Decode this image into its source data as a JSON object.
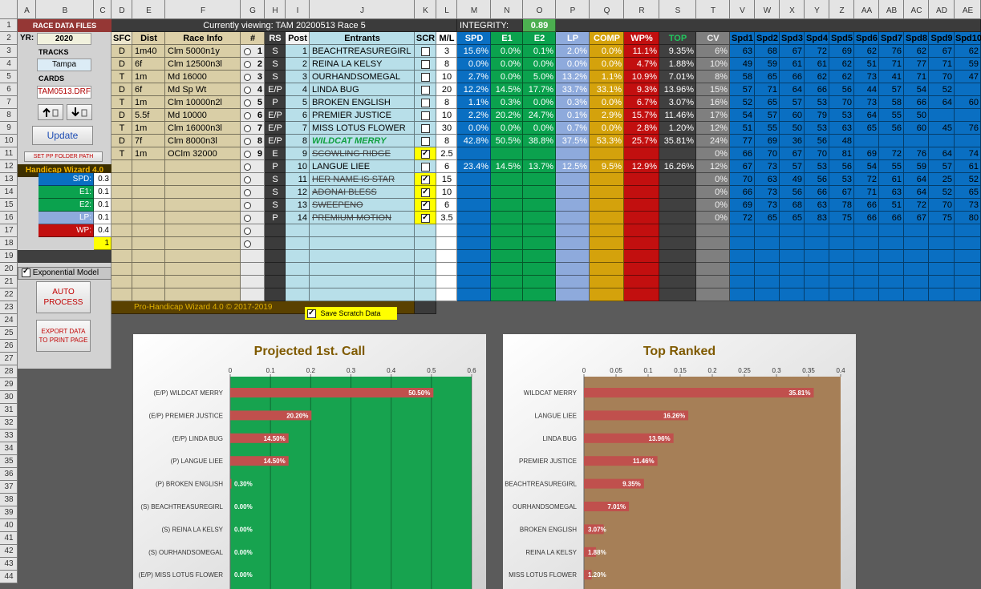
{
  "sheet": {
    "columns": [
      "A",
      "B",
      "C",
      "D",
      "E",
      "F",
      "G",
      "H",
      "I",
      "J",
      "K",
      "L",
      "M",
      "N",
      "O",
      "P",
      "Q",
      "R",
      "S",
      "T",
      "V",
      "W",
      "X",
      "Y",
      "Z",
      "AA",
      "AB",
      "AC",
      "AD",
      "AE"
    ],
    "rows": [
      1,
      2,
      3,
      4,
      5,
      6,
      7,
      8,
      9,
      10,
      11,
      12,
      13,
      14,
      15,
      16,
      17,
      18,
      19,
      20,
      21,
      22,
      23,
      24,
      25,
      26,
      27,
      28,
      29,
      30,
      31,
      32,
      33,
      34,
      35,
      36,
      37,
      38,
      39,
      40,
      41,
      42,
      43,
      44
    ],
    "panel": {
      "title": "RACE DATA FILES",
      "yr_label": "YR:",
      "year": 2020,
      "tracks_label": "TRACKS",
      "track": "Tampa",
      "cards_label": "CARDS",
      "card": "TAM0513.DRF",
      "update": "Update",
      "set_path": "SET PP FOLDER PATH",
      "wizard": "Handicap Wizard 4.0",
      "weights": [
        {
          "label": "SPD:",
          "value": 0.3
        },
        {
          "label": "E1:",
          "value": 0.1
        },
        {
          "label": "E2:",
          "value": 0.1
        },
        {
          "label": "LP:",
          "value": 0.1
        },
        {
          "label": "WP:",
          "value": 0.4
        }
      ],
      "weights_total": 1,
      "model": "Exponential Model",
      "auto": "AUTO PROCESS",
      "export": "EXPORT DATA TO PRINT PAGE"
    },
    "viewing": "Currently viewing: TAM 20200513 Race 5",
    "integrity_label": "INTEGRITY:",
    "integrity": 0.89,
    "headers": [
      "SFC",
      "Dist",
      "Race Info",
      "#",
      "RS",
      "Post",
      "Entrants",
      "SCR",
      "M/L",
      "SPD",
      "E1",
      "E2",
      "LP",
      "COMP",
      "WP%",
      "TOP",
      "CV",
      "Spd1",
      "Spd2",
      "Spd3",
      "Spd4",
      "Spd5",
      "Spd6",
      "Spd7",
      "Spd8",
      "Spd9",
      "Spd10"
    ],
    "entrants": [
      {
        "sfc": "D",
        "dist": "1m40",
        "info": "Clm 5000n1y",
        "num": 1,
        "rs": "S",
        "post": 1,
        "name": "BEACHTREASUREGIRL",
        "scr": false,
        "ml": 3,
        "pct": [
          "15.6%",
          "0.0%",
          "0.1%",
          "2.0%",
          "0.0%",
          "11.1%",
          "9.35%"
        ],
        "cv": "6%",
        "spd": [
          63,
          68,
          67,
          72,
          69,
          62,
          76,
          62,
          67,
          62
        ]
      },
      {
        "sfc": "D",
        "dist": "6f",
        "info": "Clm 12500n3l",
        "num": 2,
        "rs": "S",
        "post": 2,
        "name": "REINA LA KELSY",
        "scr": false,
        "ml": 8,
        "pct": [
          "0.0%",
          "0.0%",
          "0.0%",
          "0.0%",
          "0.0%",
          "4.7%",
          "1.88%"
        ],
        "cv": "10%",
        "spd": [
          49,
          59,
          61,
          61,
          62,
          51,
          71,
          77,
          71,
          59
        ]
      },
      {
        "sfc": "T",
        "dist": "1m",
        "info": "Md 16000",
        "num": 3,
        "rs": "S",
        "post": 3,
        "name": "OURHANDSOMEGAL",
        "scr": false,
        "ml": 10,
        "pct": [
          "2.7%",
          "0.0%",
          "5.0%",
          "13.2%",
          "1.1%",
          "10.9%",
          "7.01%"
        ],
        "cv": "8%",
        "spd": [
          58,
          65,
          66,
          62,
          62,
          73,
          41,
          71,
          70,
          47
        ]
      },
      {
        "sfc": "D",
        "dist": "6f",
        "info": "Md Sp Wt",
        "num": 4,
        "rs": "E/P",
        "post": 4,
        "name": "LINDA BUG",
        "scr": false,
        "ml": 20,
        "pct": [
          "12.2%",
          "14.5%",
          "17.7%",
          "33.7%",
          "33.1%",
          "9.3%",
          "13.96%"
        ],
        "cv": "15%",
        "spd": [
          57,
          71,
          64,
          66,
          56,
          44,
          57,
          54,
          52
        ]
      },
      {
        "sfc": "T",
        "dist": "1m",
        "info": "Clm 10000n2l",
        "num": 5,
        "rs": "P",
        "post": 5,
        "name": "BROKEN ENGLISH",
        "scr": false,
        "ml": 8,
        "pct": [
          "1.1%",
          "0.3%",
          "0.0%",
          "0.3%",
          "0.0%",
          "6.7%",
          "3.07%"
        ],
        "cv": "16%",
        "spd": [
          52,
          65,
          57,
          53,
          70,
          73,
          58,
          66,
          64,
          60
        ]
      },
      {
        "sfc": "D",
        "dist": "5.5f",
        "info": "Md 10000",
        "num": 6,
        "rs": "E/P",
        "post": 6,
        "name": "PREMIER JUSTICE",
        "scr": false,
        "ml": 10,
        "pct": [
          "2.2%",
          "20.2%",
          "24.7%",
          "0.1%",
          "2.9%",
          "15.7%",
          "11.46%"
        ],
        "cv": "17%",
        "spd": [
          54,
          57,
          60,
          79,
          53,
          64,
          55,
          50
        ]
      },
      {
        "sfc": "T",
        "dist": "1m",
        "info": "Clm 16000n3l",
        "num": 7,
        "rs": "E/P",
        "post": 7,
        "name": "MISS LOTUS FLOWER",
        "scr": false,
        "ml": 30,
        "pct": [
          "0.0%",
          "0.0%",
          "0.0%",
          "0.7%",
          "0.0%",
          "2.8%",
          "1.20%"
        ],
        "cv": "12%",
        "spd": [
          51,
          55,
          50,
          53,
          63,
          65,
          56,
          60,
          45,
          76
        ]
      },
      {
        "sfc": "D",
        "dist": "7f",
        "info": "Clm 8000n3l",
        "num": 8,
        "rs": "E/P",
        "post": 8,
        "name": "WILDCAT MERRY",
        "scr": false,
        "highlight": true,
        "ml": 8,
        "pct": [
          "42.8%",
          "50.5%",
          "38.8%",
          "37.5%",
          "53.3%",
          "25.7%",
          "35.81%"
        ],
        "cv": "24%",
        "spd": [
          77,
          69,
          36,
          56,
          48
        ]
      },
      {
        "sfc": "T",
        "dist": "1m",
        "info": "OClm 32000",
        "num": 9,
        "rs": "E",
        "post": 9,
        "name": "SCOWLING RIDGE",
        "scr": true,
        "ml": 2.5,
        "cv": "0%",
        "spd": [
          66,
          70,
          67,
          70,
          81,
          69,
          72,
          76,
          64,
          74
        ]
      },
      {
        "rs": "P",
        "post": 10,
        "name": "LANGUE LIEE",
        "scr": false,
        "ml": 6,
        "pct": [
          "23.4%",
          "14.5%",
          "13.7%",
          "12.5%",
          "9.5%",
          "12.9%",
          "16.26%"
        ],
        "cv": "12%",
        "spd": [
          67,
          73,
          57,
          53,
          56,
          54,
          55,
          59,
          57,
          61
        ]
      },
      {
        "rs": "S",
        "post": 11,
        "name": "HER NAME IS STAR",
        "scr": true,
        "ml": 15,
        "cv": "0%",
        "spd": [
          70,
          63,
          49,
          56,
          53,
          72,
          61,
          64,
          25,
          52
        ]
      },
      {
        "rs": "S",
        "post": 12,
        "name": "ADONAI BLESS",
        "scr": true,
        "ml": 10,
        "cv": "0%",
        "spd": [
          66,
          73,
          56,
          66,
          67,
          71,
          63,
          64,
          52,
          65
        ]
      },
      {
        "rs": "S",
        "post": 13,
        "name": "SWEEPENO",
        "scr": true,
        "ml": 6,
        "cv": "0%",
        "spd": [
          69,
          73,
          68,
          63,
          78,
          66,
          51,
          72,
          70,
          73
        ]
      },
      {
        "rs": "P",
        "post": 14,
        "name": "PREMIUM MOTION",
        "scr": true,
        "ml": 3.5,
        "cv": "0%",
        "spd": [
          72,
          65,
          65,
          83,
          75,
          66,
          66,
          67,
          75,
          80
        ]
      }
    ],
    "footer": "Pro-Handicap Wizard 4.0 © 2017-2019",
    "save_scratch": "Save Scratch Data"
  },
  "chart_data": [
    {
      "type": "bar",
      "orientation": "horizontal",
      "title": "Projected 1st. Call",
      "title_color": "#7f5a00",
      "color": "#c0504d",
      "plot_color": "#17a34f",
      "grid": true,
      "categories": [
        "(E/P) WILDCAT MERRY",
        "(E/P) PREMIER JUSTICE",
        "(E/P) LINDA BUG",
        "(P) LANGUE LIEE",
        "(P) BROKEN ENGLISH",
        "(S) BEACHTREASUREGIRL",
        "(S) REINA LA KELSY",
        "(S) OURHANDSOMEGAL",
        "(E/P) MISS LOTUS FLOWER"
      ],
      "values": [
        0.505,
        0.202,
        0.145,
        0.145,
        0.003,
        0,
        0,
        0,
        0
      ],
      "value_labels": [
        "50.50%",
        "20.20%",
        "14.50%",
        "14.50%",
        "0.30%",
        "0.00%",
        "0.00%",
        "0.00%",
        "0.00%"
      ],
      "xlim": [
        0,
        0.6
      ],
      "xticks": [
        0,
        0.1,
        0.2,
        0.3,
        0.4,
        0.5,
        0.6
      ]
    },
    {
      "type": "bar",
      "orientation": "horizontal",
      "title": "Top Ranked",
      "title_color": "#7f5a00",
      "color": "#c0504d",
      "plot_color": "#a67f57",
      "grid": false,
      "categories": [
        "WILDCAT MERRY",
        "LANGUE LIEE",
        "LINDA BUG",
        "PREMIER JUSTICE",
        "BEACHTREASUREGIRL",
        "OURHANDSOMEGAL",
        "BROKEN ENGLISH",
        "REINA LA KELSY",
        "MISS LOTUS FLOWER"
      ],
      "values": [
        0.3581,
        0.1626,
        0.1396,
        0.1146,
        0.0935,
        0.0701,
        0.0307,
        0.0188,
        0.012
      ],
      "value_labels": [
        "35.81%",
        "16.26%",
        "13.96%",
        "11.46%",
        "9.35%",
        "7.01%",
        "3.07%",
        "1.88%",
        "1.20%"
      ],
      "xlim": [
        0,
        0.4
      ],
      "xticks": [
        0,
        0.05,
        0.1,
        0.15,
        0.2,
        0.25,
        0.3,
        0.35,
        0.4
      ]
    }
  ]
}
